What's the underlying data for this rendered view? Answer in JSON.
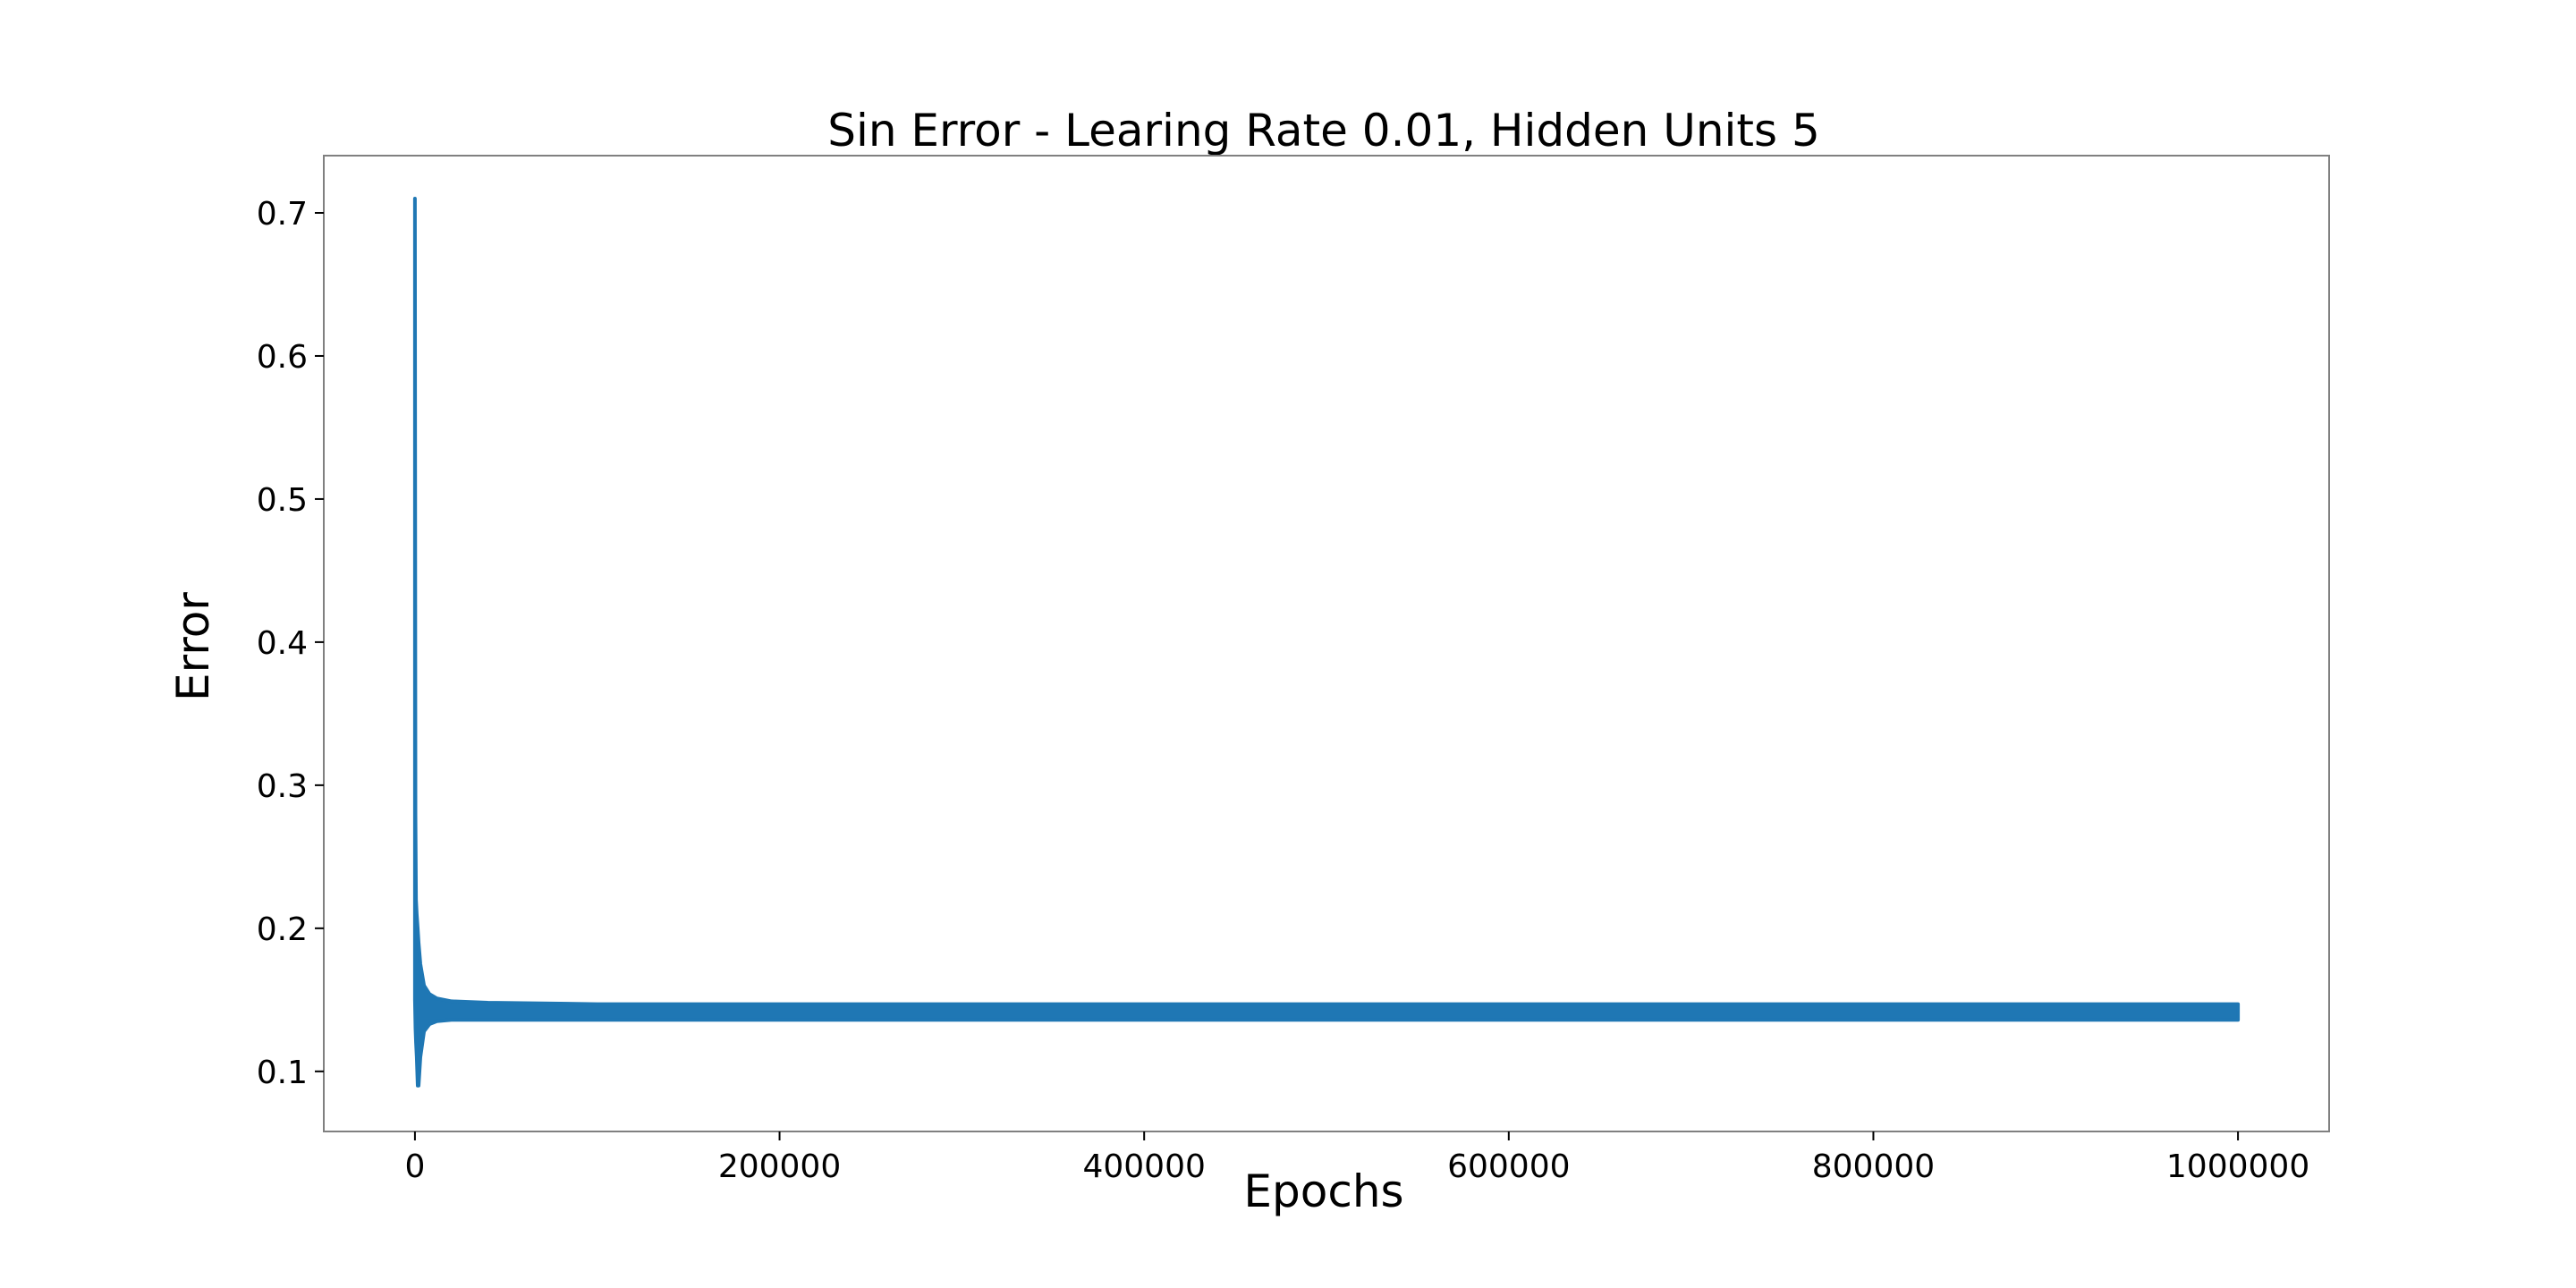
{
  "chart_data": {
    "type": "line",
    "title": "Sin Error - Learing Rate 0.01, Hidden Units 5",
    "xlabel": "Epochs",
    "ylabel": "Error",
    "xlim": [
      -50000,
      1050000
    ],
    "ylim": [
      0.058,
      0.74
    ],
    "grid": false,
    "legend": "none",
    "line_color": "#1f77b4",
    "x_ticks": [
      {
        "value": 0,
        "label": "0"
      },
      {
        "value": 200000,
        "label": "200000"
      },
      {
        "value": 400000,
        "label": "400000"
      },
      {
        "value": 600000,
        "label": "600000"
      },
      {
        "value": 800000,
        "label": "800000"
      },
      {
        "value": 1000000,
        "label": "1000000"
      }
    ],
    "y_ticks": [
      {
        "value": 0.1,
        "label": "0.1"
      },
      {
        "value": 0.2,
        "label": "0.2"
      },
      {
        "value": 0.3,
        "label": "0.3"
      },
      {
        "value": 0.4,
        "label": "0.4"
      },
      {
        "value": 0.5,
        "label": "0.5"
      },
      {
        "value": 0.6,
        "label": "0.6"
      },
      {
        "value": 0.7,
        "label": "0.7"
      }
    ],
    "series": [
      {
        "x": [
          0,
          300,
          600,
          1000,
          1500,
          2000,
          3000,
          5000,
          8000,
          12000,
          20000,
          40000,
          100000,
          200000,
          400000,
          600000,
          800000,
          1000000
        ],
        "upper": [
          0.71,
          0.28,
          0.22,
          0.21,
          0.2,
          0.19,
          0.175,
          0.16,
          0.154,
          0.151,
          0.149,
          0.148,
          0.147,
          0.147,
          0.147,
          0.147,
          0.147,
          0.147
        ],
        "lower": [
          0.15,
          0.13,
          0.12,
          0.11,
          0.09,
          0.09,
          0.11,
          0.128,
          0.133,
          0.135,
          0.136,
          0.136,
          0.136,
          0.136,
          0.136,
          0.136,
          0.136,
          0.136
        ]
      }
    ]
  }
}
